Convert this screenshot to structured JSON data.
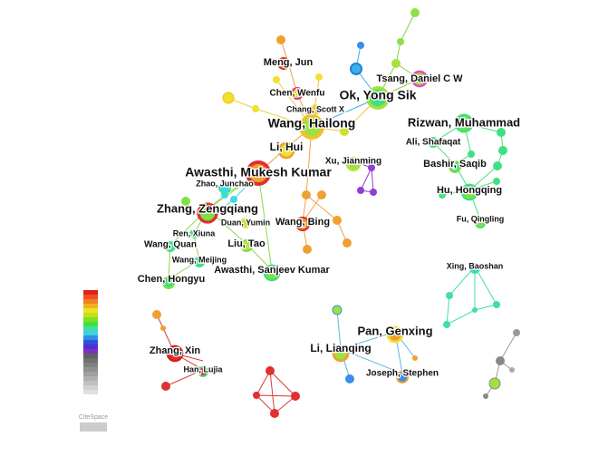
{
  "nodes": [
    {
      "label": "Meng, Jun"
    },
    {
      "label": "Chen, Wenfu"
    },
    {
      "label": "Chang, Scott X"
    },
    {
      "label": "Ok, Yong Sik"
    },
    {
      "label": "Tsang, Daniel C W"
    },
    {
      "label": "Wang, Hailong"
    },
    {
      "label": "Rizwan, Muhammad"
    },
    {
      "label": "Li, Hui"
    },
    {
      "label": "Ali, Shafaqat"
    },
    {
      "label": "Xu, Jianming"
    },
    {
      "label": "Bashir, Saqib"
    },
    {
      "label": "Awasthi, Mukesh Kumar"
    },
    {
      "label": "Zhao, Junchao"
    },
    {
      "label": "Hu, Hongqing"
    },
    {
      "label": "Zhang, Zengqiang"
    },
    {
      "label": "Duan, Yumin"
    },
    {
      "label": "Wang, Bing"
    },
    {
      "label": "Fu, Qingling"
    },
    {
      "label": "Ren, Xiuna"
    },
    {
      "label": "Wang, Quan"
    },
    {
      "label": "Liu, Tao"
    },
    {
      "label": "Wang, Meijing"
    },
    {
      "label": "Awasthi, Sanjeev Kumar"
    },
    {
      "label": "Xing, Baoshan"
    },
    {
      "label": "Chen, Hongyu"
    },
    {
      "label": "Pan, Genxing"
    },
    {
      "label": "Zhang, Xin"
    },
    {
      "label": "Li, Lianqing"
    },
    {
      "label": "Han, Lujia"
    },
    {
      "label": "Joseph, Stephen"
    }
  ],
  "logo": "CiteSpace"
}
